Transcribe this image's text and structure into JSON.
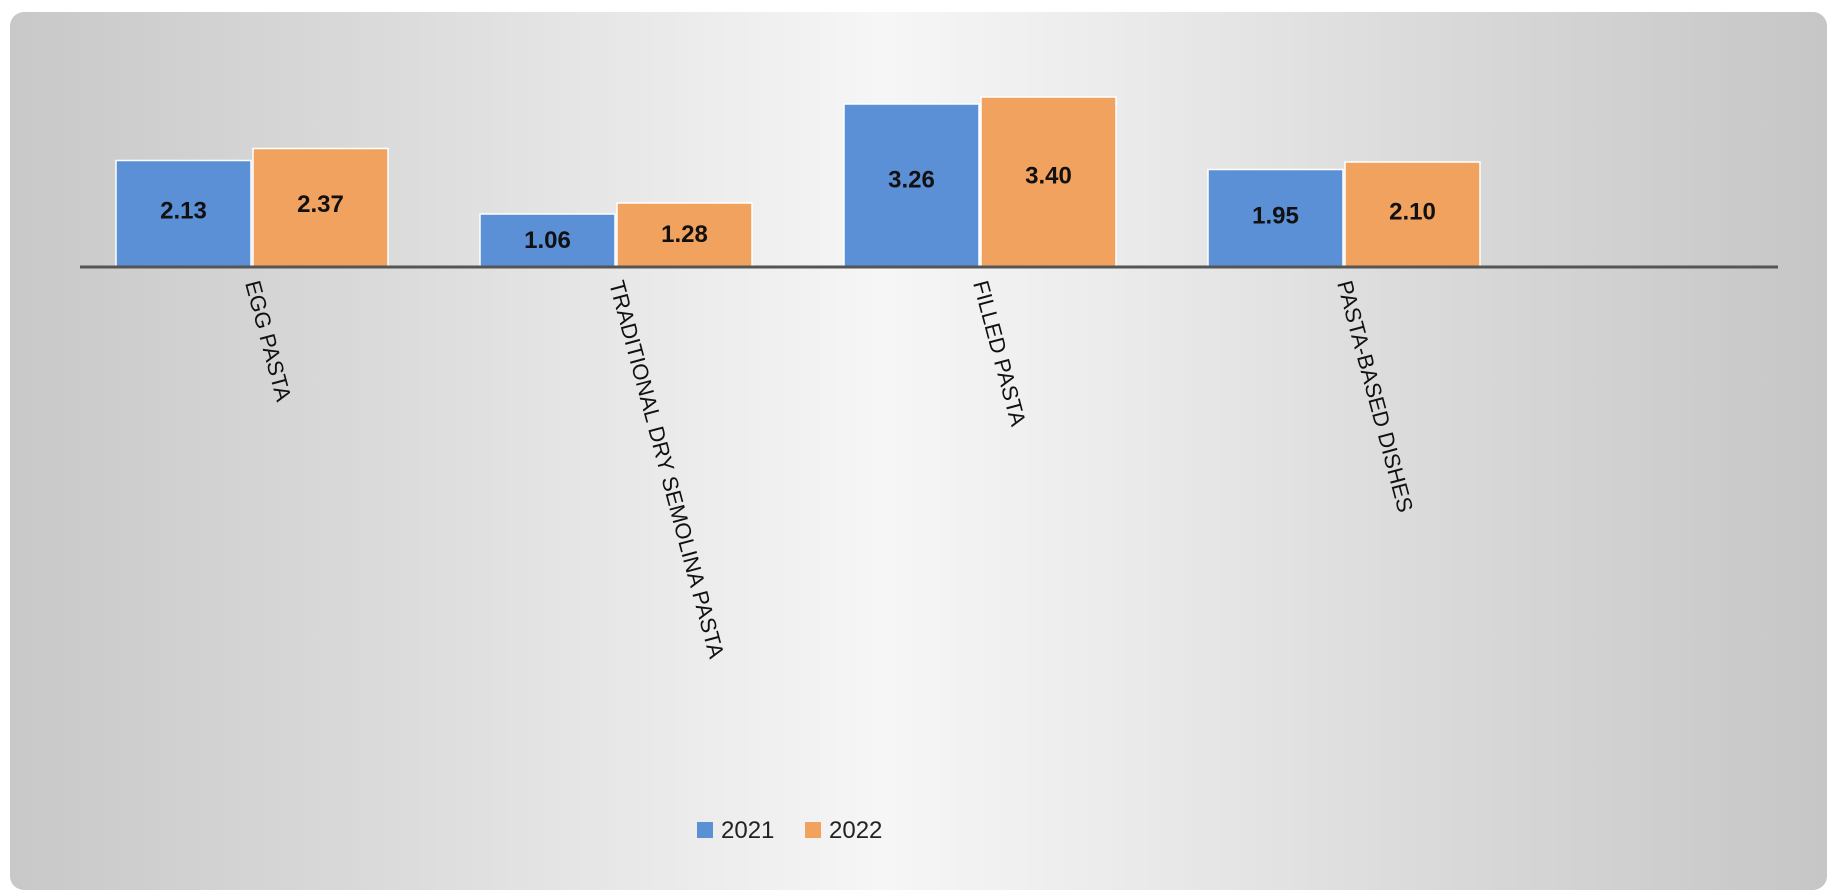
{
  "chart_data": {
    "type": "bar",
    "title": "",
    "xlabel": "",
    "ylabel": "",
    "categories": [
      "EGG PASTA",
      "TRADITIONAL DRY SEMOLINA PASTA",
      "FILLED PASTA",
      "PASTA-BASED DISHES"
    ],
    "series": [
      {
        "name": "2021",
        "color": "#5b8fd6",
        "values": [
          2.13,
          1.06,
          3.26,
          1.95
        ],
        "labels": [
          "2.13",
          "1.06",
          "3.26",
          "1.95"
        ]
      },
      {
        "name": "2022",
        "color": "#f0a25e",
        "values": [
          2.37,
          1.28,
          3.4,
          2.1
        ],
        "labels": [
          "2.37",
          "1.28",
          "3.40",
          "2.10"
        ]
      }
    ],
    "ylim": [
      0,
      4
    ],
    "grid": false,
    "legend": "bottom",
    "data_labels": true
  }
}
